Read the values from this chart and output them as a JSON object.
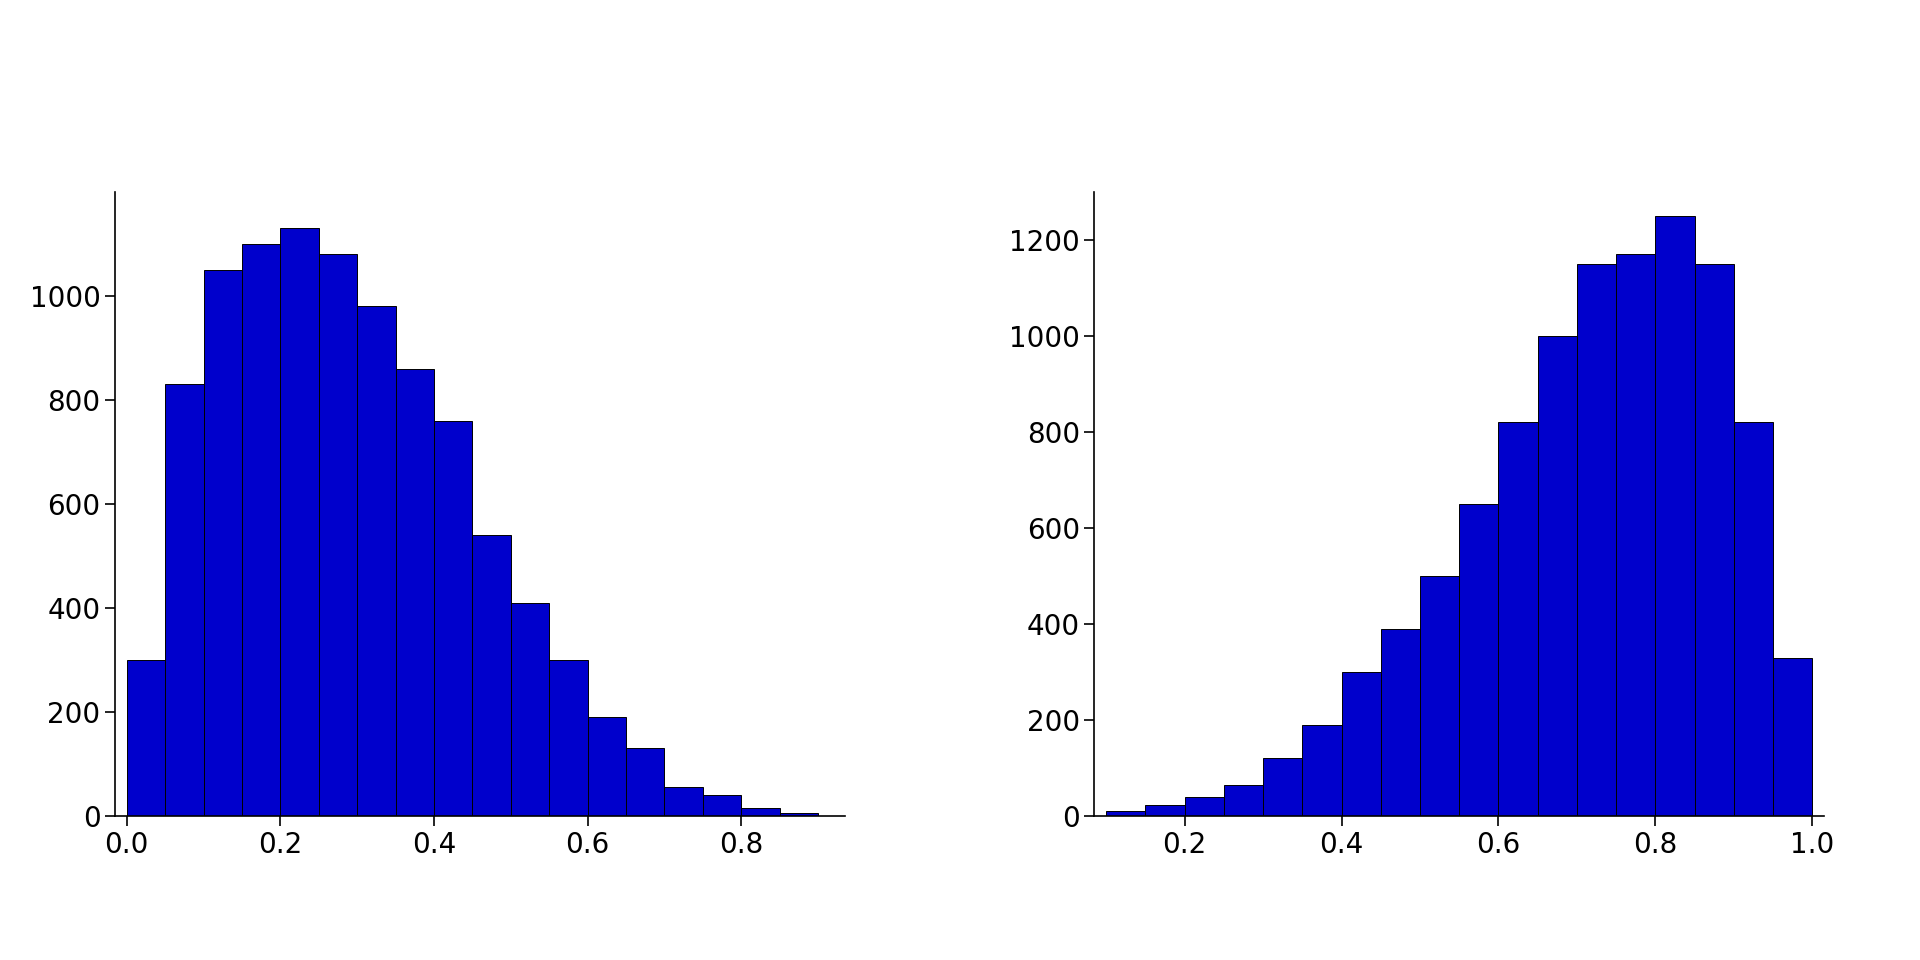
{
  "left_hist": {
    "bin_edges": [
      0.0,
      0.05,
      0.1,
      0.15,
      0.2,
      0.25,
      0.3,
      0.35,
      0.4,
      0.45,
      0.5,
      0.55,
      0.6,
      0.65,
      0.7,
      0.75,
      0.8,
      0.85,
      0.9
    ],
    "counts": [
      300,
      830,
      1050,
      1100,
      1130,
      1080,
      980,
      860,
      760,
      540,
      410,
      300,
      190,
      130,
      55,
      40,
      15,
      5
    ],
    "xlim": [
      -0.015,
      0.935
    ],
    "xticks": [
      0.0,
      0.2,
      0.4,
      0.6,
      0.8
    ],
    "ylim": [
      0,
      1200
    ],
    "yticks": [
      0,
      200,
      400,
      600,
      800,
      1000
    ]
  },
  "right_hist": {
    "bin_edges": [
      0.1,
      0.15,
      0.2,
      0.25,
      0.3,
      0.35,
      0.4,
      0.45,
      0.5,
      0.55,
      0.6,
      0.65,
      0.7,
      0.75,
      0.8,
      0.85,
      0.9,
      0.95,
      1.0
    ],
    "counts": [
      10,
      22,
      40,
      65,
      120,
      190,
      300,
      390,
      500,
      650,
      820,
      1000,
      1150,
      1170,
      1250,
      1150,
      820,
      330
    ],
    "xlim": [
      0.085,
      1.015
    ],
    "xticks": [
      0.2,
      0.4,
      0.6,
      0.8,
      1.0
    ],
    "ylim": [
      0,
      1300
    ],
    "yticks": [
      0,
      200,
      400,
      600,
      800,
      1000,
      1200
    ]
  },
  "bar_color": "#0000CC",
  "bar_edge_color": "#000000",
  "bar_linewidth": 0.7,
  "background_color": "#ffffff",
  "tick_fontsize": 20,
  "fig_width": 19.2,
  "fig_height": 9.6
}
